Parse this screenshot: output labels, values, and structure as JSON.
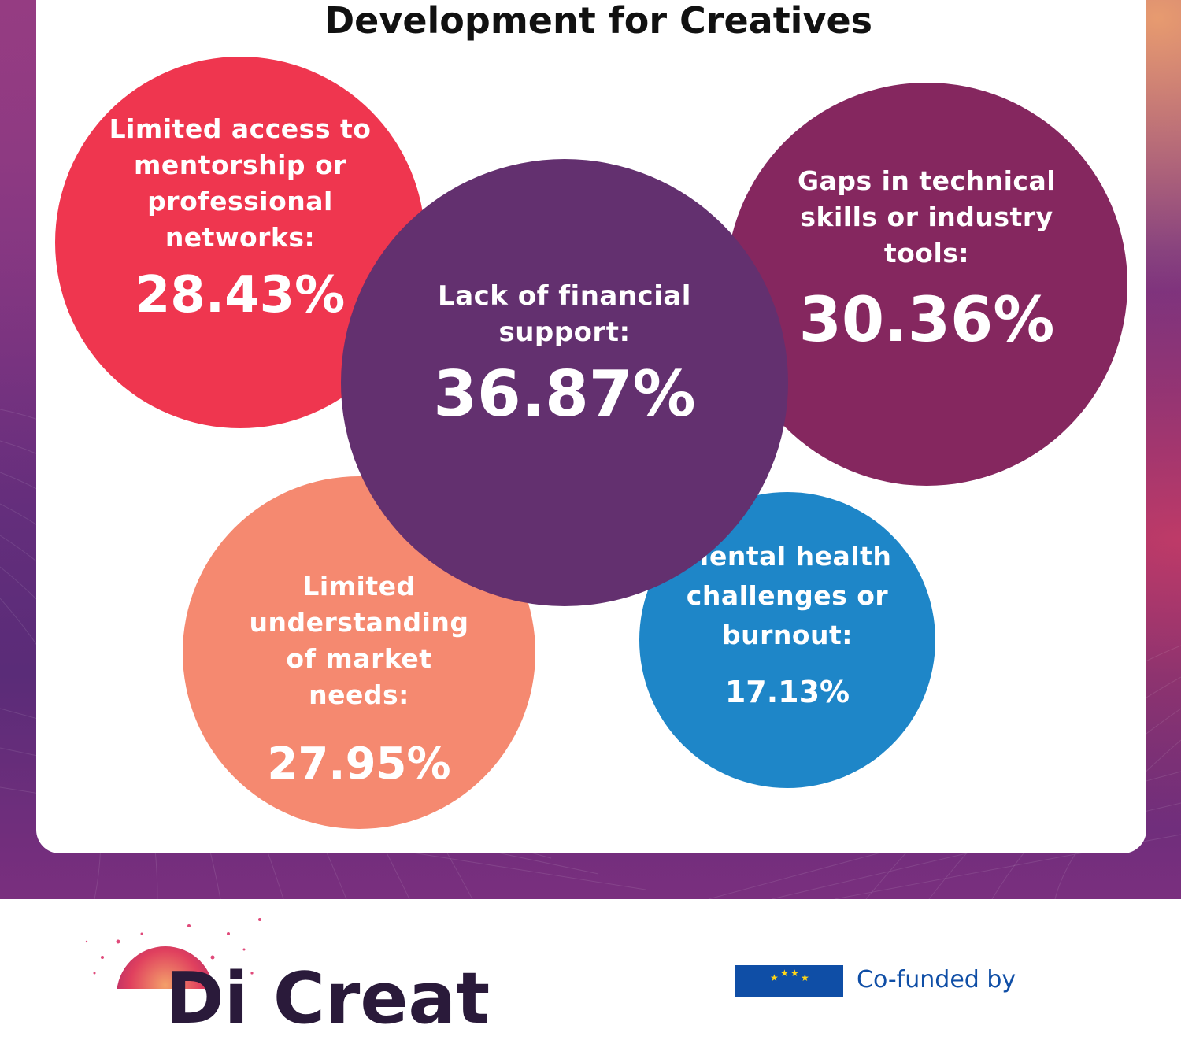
{
  "chart_data": {
    "type": "bubble",
    "title": "Development for Creatives",
    "items": [
      {
        "label": "Limited access to mentorship or professional networks:",
        "value": 28.43,
        "display": "28.43%",
        "color": "#ef364f"
      },
      {
        "label": "Lack of financial support:",
        "value": 36.87,
        "display": "36.87%",
        "color": "#63306f"
      },
      {
        "label": "Gaps in technical skills or industry tools:",
        "value": 30.36,
        "display": "30.36%",
        "color": "#85275f"
      },
      {
        "label": "Limited understanding of market needs:",
        "value": 27.95,
        "display": "27.95%",
        "color": "#f58970"
      },
      {
        "label": "Mental health challenges or burnout:",
        "value": 17.13,
        "display": "17.13%",
        "color": "#1e86c8"
      }
    ]
  },
  "footer": {
    "logo_text": "Di Creat",
    "eu_text": "Co-funded by"
  }
}
